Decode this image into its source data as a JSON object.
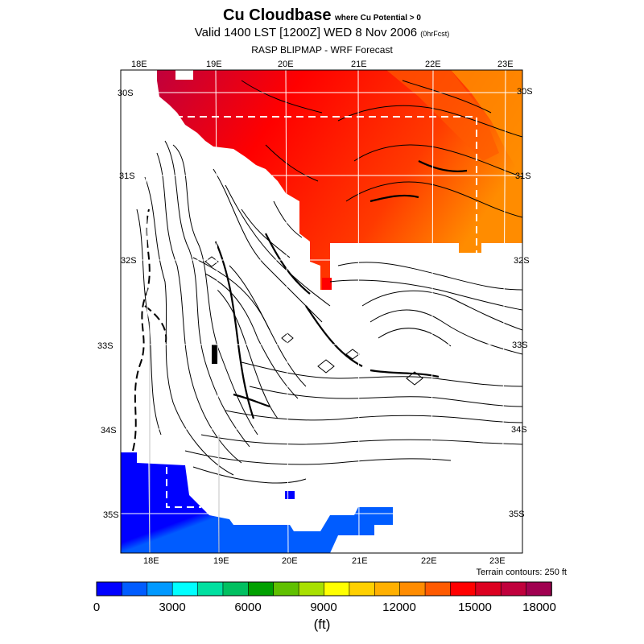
{
  "title": {
    "main": "Cu Cloudbase",
    "sub": "where Cu Potential > 0",
    "valid": "Valid 1400 LST [1200Z] WED 8 Nov 2006",
    "fcst": "(0hrFcst)",
    "model": "RASP BLIPMAP - WRF Forecast"
  },
  "map": {
    "lon_labels_top": [
      "18E",
      "19E",
      "20E",
      "21E",
      "22E",
      "23E"
    ],
    "lon_labels_bottom": [
      "18E",
      "19E",
      "20E",
      "21E",
      "22E",
      "23E"
    ],
    "lat_labels_left": [
      "30S",
      "31S",
      "32S",
      "33S",
      "34S",
      "35S"
    ],
    "lat_labels_right": [
      "30S",
      "31S",
      "32S",
      "33S",
      "34S",
      "35S"
    ],
    "terrain_note": "Terrain contours: 250 ft"
  },
  "colorbar": {
    "colors": [
      "#0000ff",
      "#005cff",
      "#0099ff",
      "#00ffff",
      "#00e0a0",
      "#00c060",
      "#00a000",
      "#60c000",
      "#a8e000",
      "#ffff00",
      "#ffd000",
      "#ffb000",
      "#ff8c00",
      "#ff5a00",
      "#ff0000",
      "#dc0020",
      "#c0003c",
      "#a00050"
    ],
    "labels": [
      "0",
      "3000",
      "6000",
      "9000",
      "12000",
      "15000",
      "18000"
    ],
    "units": "(ft)"
  }
}
